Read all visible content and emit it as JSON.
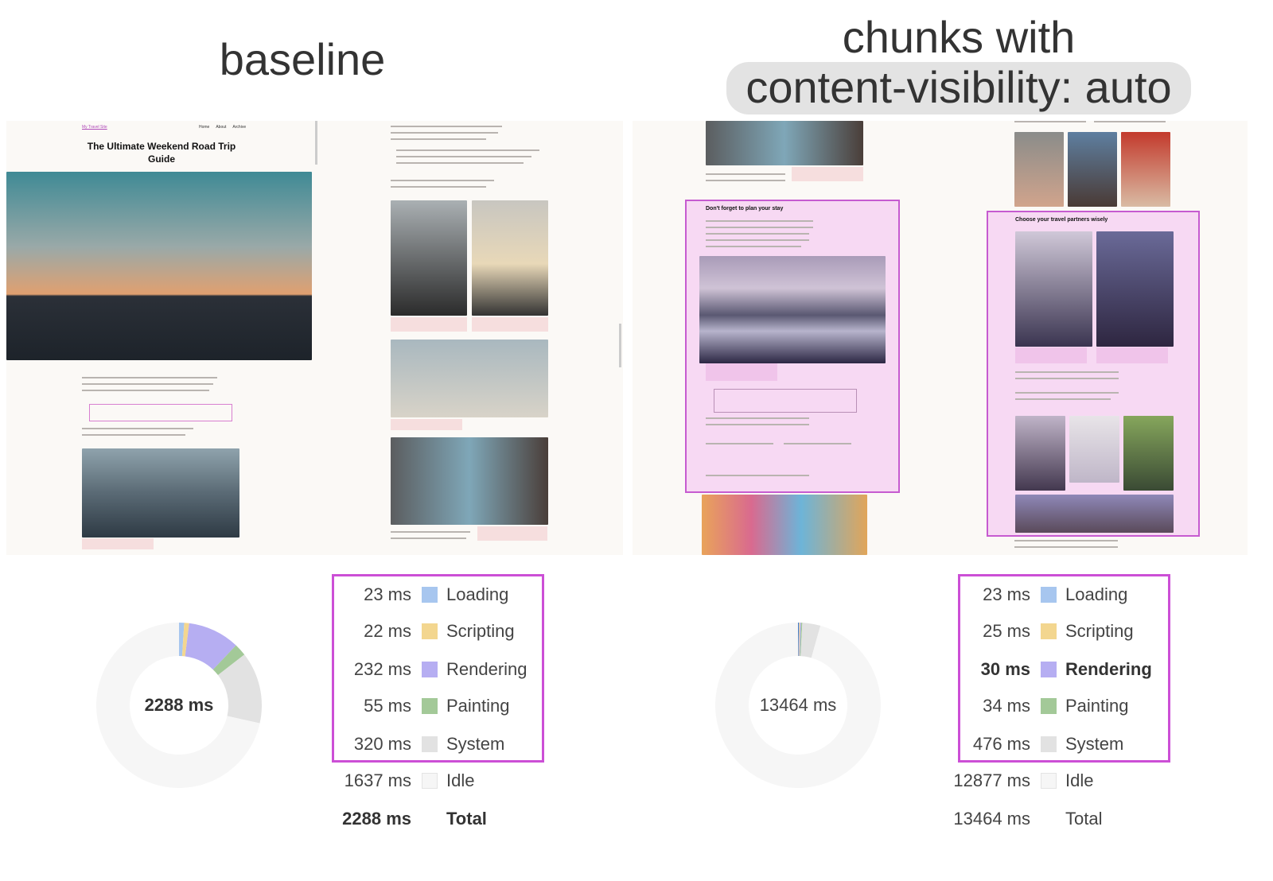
{
  "titles": {
    "left": "baseline",
    "right_line1": "chunks with",
    "right_line2": "content-visibility: auto"
  },
  "mock_page": {
    "site_name": "My Travel Site",
    "nav": [
      "Home",
      "About",
      "Archive"
    ],
    "heading": "The Ultimate Weekend Road Trip Guide",
    "section1": "Don't forget to plan your stay",
    "section2": "Choose your travel partners wisely"
  },
  "colors": {
    "loading": "#a7c6ef",
    "scripting": "#f3d68f",
    "rendering": "#b6aef2",
    "painting": "#a3c998",
    "system": "#e2e2e2",
    "idle": "#f6f6f6",
    "highlight": "#cc4fd6"
  },
  "chart_data": [
    {
      "type": "pie",
      "name": "baseline",
      "center_label": "2288 ms",
      "categories": [
        "Loading",
        "Scripting",
        "Rendering",
        "Painting",
        "System",
        "Idle"
      ],
      "values": [
        23,
        22,
        232,
        55,
        320,
        1637
      ],
      "value_labels": [
        "23 ms",
        "22 ms",
        "232 ms",
        "55 ms",
        "320 ms",
        "1637 ms"
      ],
      "total_label": "Total",
      "total_value": "2288 ms"
    },
    {
      "type": "pie",
      "name": "chunks with content-visibility: auto",
      "center_label": "13464 ms",
      "categories": [
        "Loading",
        "Scripting",
        "Rendering",
        "Painting",
        "System",
        "Idle"
      ],
      "values": [
        23,
        25,
        30,
        34,
        476,
        12877
      ],
      "value_labels": [
        "23 ms",
        "25 ms",
        "30 ms",
        "34 ms",
        "476 ms",
        "12877 ms"
      ],
      "total_label": "Total",
      "total_value": "13464 ms"
    }
  ]
}
